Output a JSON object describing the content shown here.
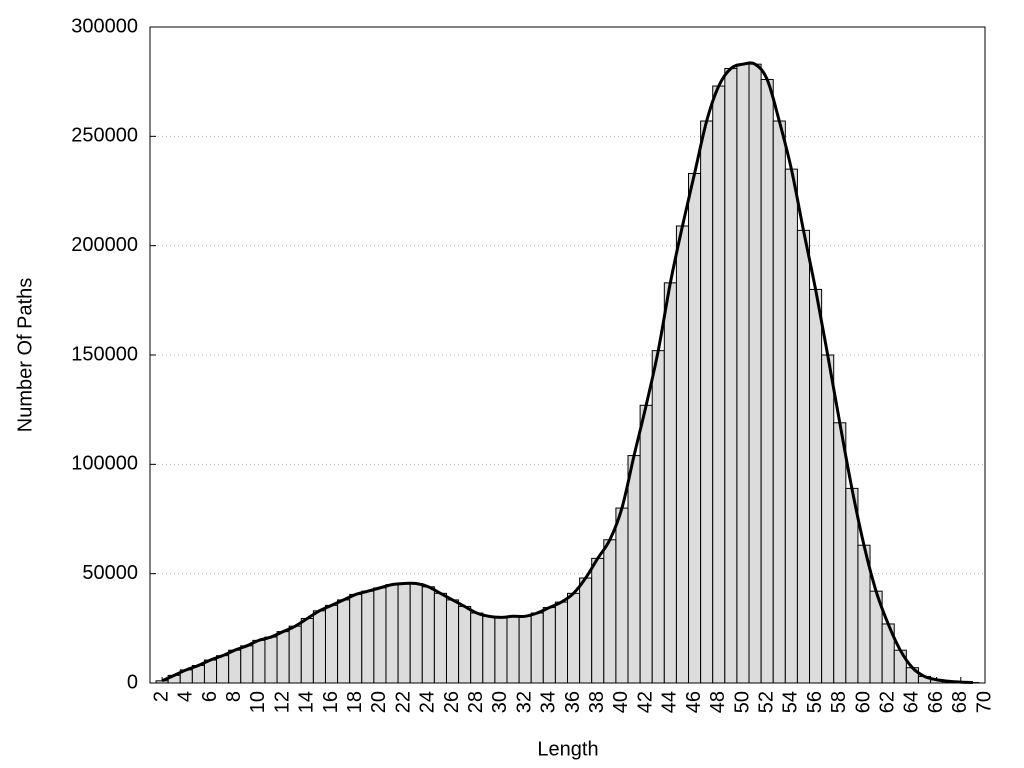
{
  "chart_data": {
    "type": "bar",
    "xlabel": "Length",
    "ylabel": "Number Of Paths",
    "x": [
      2,
      3,
      4,
      5,
      6,
      7,
      8,
      9,
      10,
      11,
      12,
      13,
      14,
      15,
      16,
      17,
      18,
      19,
      20,
      21,
      22,
      23,
      24,
      25,
      26,
      27,
      28,
      29,
      30,
      31,
      32,
      33,
      34,
      35,
      36,
      37,
      38,
      39,
      40,
      41,
      42,
      43,
      44,
      45,
      46,
      47,
      48,
      49,
      50,
      51,
      52,
      53,
      54,
      55,
      56,
      57,
      58,
      59,
      60,
      61,
      62,
      63,
      64,
      65,
      66,
      67,
      68,
      69
    ],
    "values": [
      1000,
      3500,
      6000,
      8000,
      10500,
      12500,
      15000,
      17000,
      19500,
      21000,
      23500,
      26000,
      29500,
      33000,
      35500,
      38000,
      40500,
      42000,
      43500,
      45000,
      45500,
      45500,
      44000,
      41000,
      38000,
      35000,
      32000,
      30500,
      30000,
      30500,
      30500,
      32000,
      34500,
      37000,
      41000,
      48000,
      57000,
      65500,
      80000,
      104000,
      127000,
      152000,
      183000,
      209000,
      233000,
      257000,
      273000,
      281000,
      283000,
      283000,
      276000,
      257000,
      235000,
      207000,
      180000,
      150000,
      119000,
      89000,
      63000,
      42000,
      27000,
      15000,
      7000,
      3000,
      1500,
      800,
      400,
      200
    ],
    "color": "#dcdcdc",
    "xlim": [
      1,
      70
    ],
    "xticks": [
      2,
      4,
      6,
      8,
      10,
      12,
      14,
      16,
      18,
      20,
      22,
      24,
      26,
      28,
      30,
      32,
      34,
      36,
      38,
      40,
      42,
      44,
      46,
      48,
      50,
      52,
      54,
      56,
      58,
      60,
      62,
      64,
      66,
      68,
      70
    ],
    "ylim": [
      0,
      300000
    ],
    "yticks": [
      0,
      50000,
      100000,
      150000,
      200000,
      250000,
      300000
    ],
    "grid": true
  }
}
